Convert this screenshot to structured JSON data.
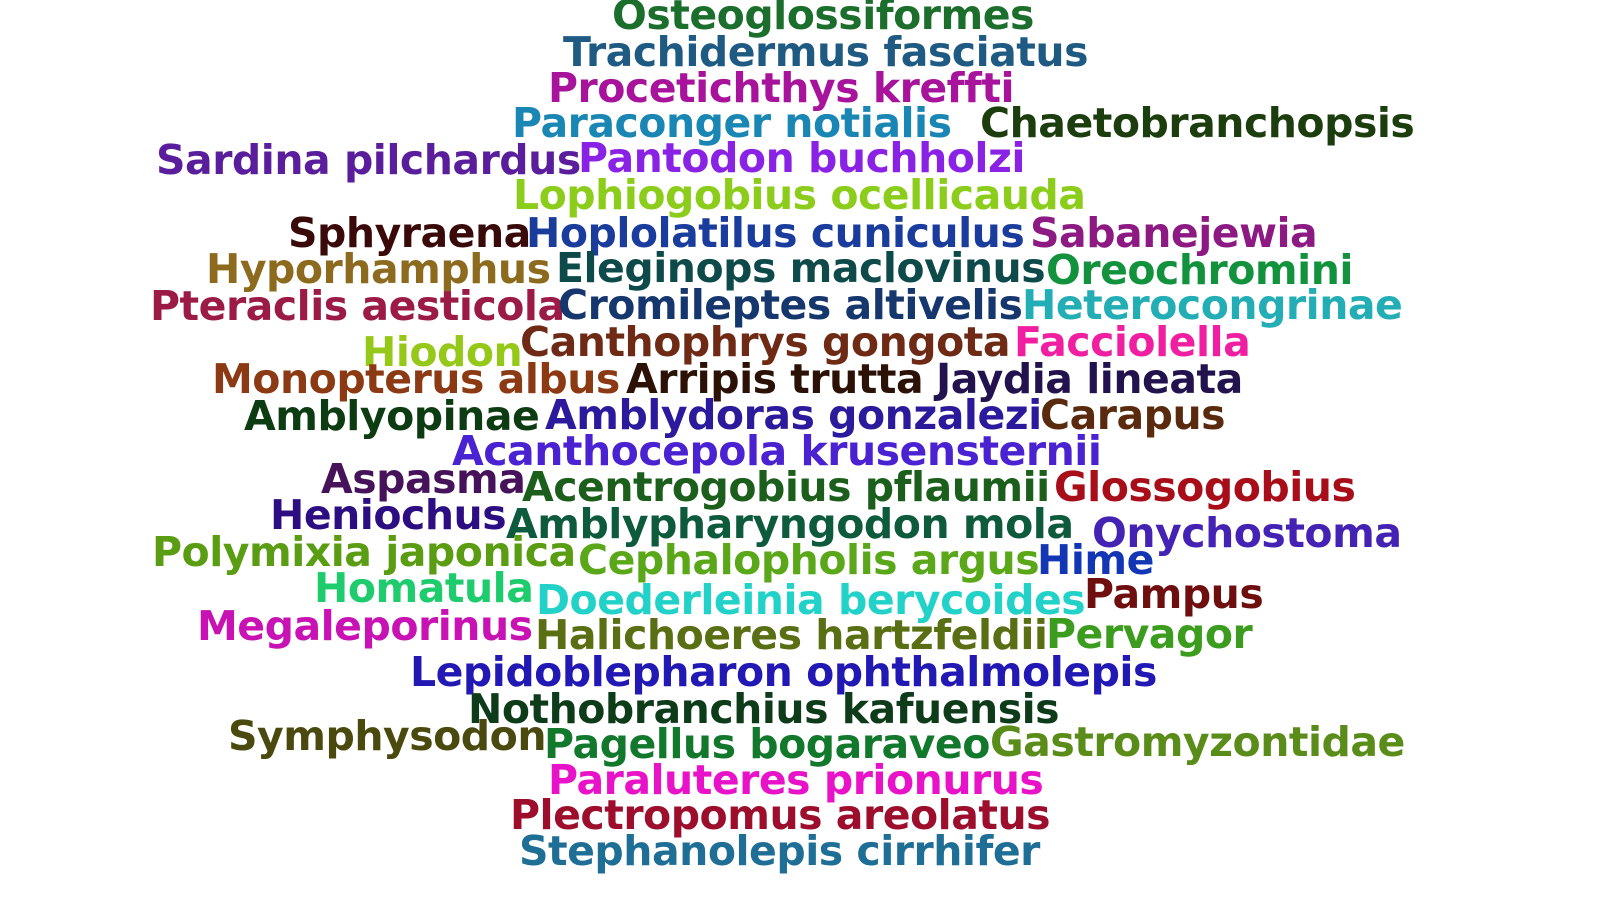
{
  "words": [
    {
      "text": "Osteoglossiformes",
      "color": "#1c6e2c"
    },
    {
      "text": "Trachidermus fasciatus",
      "color": "#1e5a82"
    },
    {
      "text": "Procetichthys kreffti",
      "color": "#a8139c"
    },
    {
      "text": "Paraconger notialis",
      "color": "#1a86b4"
    },
    {
      "text": "Chaetobranchopsis",
      "color": "#1c3d0e"
    },
    {
      "text": "Sardina pilchardus",
      "color": "#5a1e9c"
    },
    {
      "text": "Pantodon buchholzi",
      "color": "#8a22e6"
    },
    {
      "text": "Lophiogobius ocellicauda",
      "color": "#8ccc1a"
    },
    {
      "text": "Sphyraena",
      "color": "#3a0a0a"
    },
    {
      "text": "Hoplolatilus cuniculus",
      "color": "#1a3c9c"
    },
    {
      "text": "Sabanejewia",
      "color": "#8c1a82"
    },
    {
      "text": "Hyporhamphus",
      "color": "#8c6a1e"
    },
    {
      "text": "Eleginops maclovinus",
      "color": "#0e4a4a"
    },
    {
      "text": "Oreochromini",
      "color": "#12923c"
    },
    {
      "text": "Pteraclis aesticola",
      "color": "#9c1a46"
    },
    {
      "text": "Cromileptes altivelis",
      "color": "#16366e"
    },
    {
      "text": "Heterocongrinae",
      "color": "#22aeb4"
    },
    {
      "text": "Hiodon",
      "color": "#96c81a"
    },
    {
      "text": "Canthophrys gongota",
      "color": "#6e2a14"
    },
    {
      "text": "Facciolella",
      "color": "#f01ea0"
    },
    {
      "text": "Monopterus albus",
      "color": "#8c3a14"
    },
    {
      "text": "Arripis trutta",
      "color": "#2c1206"
    },
    {
      "text": "Jaydia lineata",
      "color": "#22124e"
    },
    {
      "text": "Amblyopinae",
      "color": "#0e3c12"
    },
    {
      "text": "Amblydoras gonzalezi",
      "color": "#2c1a9c"
    },
    {
      "text": "Carapus",
      "color": "#5a2a0e"
    },
    {
      "text": "Acanthocepola krusensternii",
      "color": "#4a22d2"
    },
    {
      "text": "Aspasma",
      "color": "#46125a"
    },
    {
      "text": "Acentrogobius pflaumii",
      "color": "#1c5e1c"
    },
    {
      "text": "Glossogobius",
      "color": "#a80e1a"
    },
    {
      "text": "Heniochus",
      "color": "#2c0e82"
    },
    {
      "text": "Amblypharyngodon mola",
      "color": "#0e5a3c"
    },
    {
      "text": "Onychostoma",
      "color": "#4422b4"
    },
    {
      "text": "Polymixia japonica",
      "color": "#5a9c12"
    },
    {
      "text": "Cephalopholis argus",
      "color": "#5aa81a"
    },
    {
      "text": "Hime",
      "color": "#1236b4"
    },
    {
      "text": "Homatula",
      "color": "#1ecc6e"
    },
    {
      "text": "Doederleinia berycoides",
      "color": "#22d2c8"
    },
    {
      "text": "Pampus",
      "color": "#6e0e0e"
    },
    {
      "text": "Megaleporinus",
      "color": "#c812b4"
    },
    {
      "text": "Halichoeres hartzfeldii",
      "color": "#5a6e14"
    },
    {
      "text": "Pervagor",
      "color": "#3c9c1e"
    },
    {
      "text": "Lepidoblepharon ophthalmolepis",
      "color": "#2218b4"
    },
    {
      "text": "Nothobranchius kafuensis",
      "color": "#0e3c1a"
    },
    {
      "text": "Symphysodon",
      "color": "#4a4a0e"
    },
    {
      "text": "Pagellus bogaraveo",
      "color": "#12782c"
    },
    {
      "text": "Gastromyzontidae",
      "color": "#5a8c1a"
    },
    {
      "text": "Paraluteres prionurus",
      "color": "#e812c8"
    },
    {
      "text": "Plectropomus areolatus",
      "color": "#9c0e2c"
    },
    {
      "text": "Stephanolepis cirrhifer",
      "color": "#1e6e96"
    }
  ]
}
